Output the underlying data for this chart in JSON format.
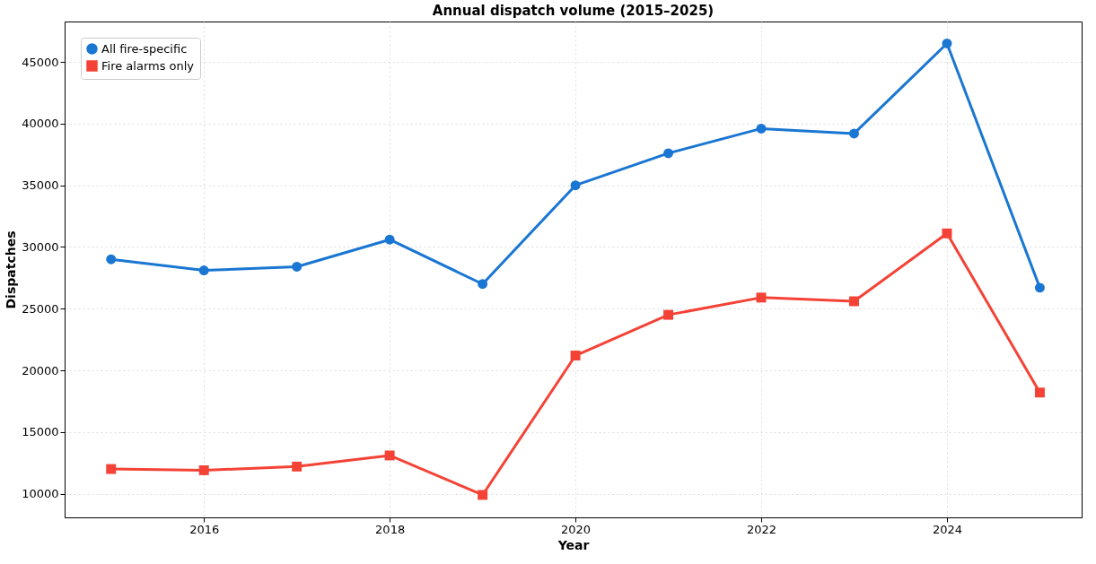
{
  "chart_data": {
    "type": "line",
    "title": "Annual dispatch volume (2015–2025)",
    "xlabel": "Year",
    "ylabel": "Dispatches",
    "x": [
      2015,
      2016,
      2017,
      2018,
      2019,
      2020,
      2021,
      2022,
      2023,
      2024,
      2025
    ],
    "series": [
      {
        "name": "All fire-specific",
        "color": "#1976d2",
        "marker": "circle",
        "values": [
          29000,
          28100,
          28400,
          30600,
          27000,
          35000,
          37600,
          39600,
          39200,
          46500,
          26700
        ]
      },
      {
        "name": "Fire alarms only",
        "color": "#f44336",
        "marker": "square",
        "values": [
          12000,
          11900,
          12200,
          13100,
          9900,
          21200,
          24500,
          25900,
          25600,
          31100,
          18200
        ]
      }
    ],
    "xlim": [
      2014.5,
      2025.45
    ],
    "xticks": [
      2016,
      2018,
      2020,
      2022,
      2024
    ],
    "ylim": [
      8080,
      48280
    ],
    "yticks": [
      10000,
      15000,
      20000,
      25000,
      30000,
      35000,
      40000,
      45000
    ],
    "grid": true,
    "legend": "top left",
    "line_style": "solid"
  }
}
